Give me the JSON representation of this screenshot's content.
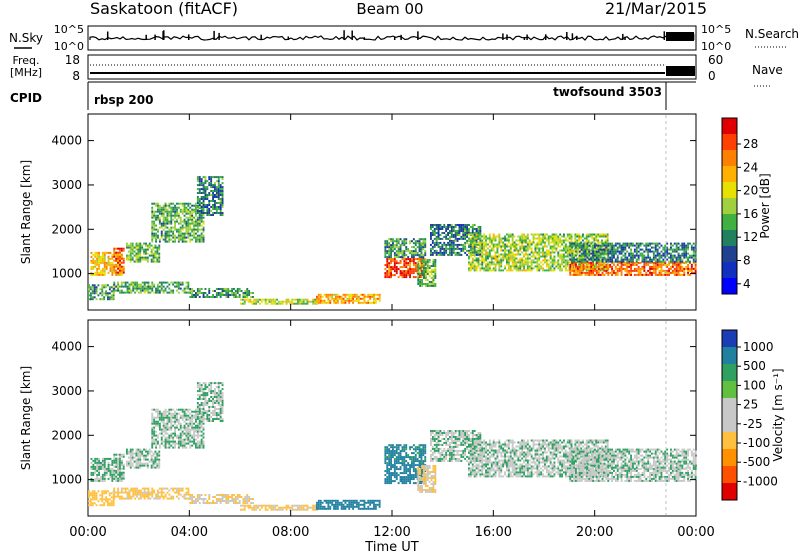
{
  "header": {
    "station": "Saskatoon (fitACF)",
    "beam": "Beam 00",
    "date": "21/Mar/2015"
  },
  "noise_panel": {
    "left_label": "N.Sky",
    "right_label": "N.Search",
    "left_ticks": [
      "10^5",
      "10^0"
    ],
    "right_ticks": [
      "10^5",
      "10^0"
    ]
  },
  "freq_panel": {
    "left_label_line1": "Freq.",
    "left_label_line2": "[MHz]",
    "left_ticks": [
      "18",
      "8"
    ],
    "right_label": "Nave",
    "right_ticks": [
      "60",
      "0"
    ]
  },
  "cpid_panel": {
    "label": "CPID",
    "segments": [
      {
        "name": "rbsp 200",
        "start_hour": 0,
        "end_hour": 22.9
      },
      {
        "name": "twofsound 3503",
        "start_hour": 22.9,
        "end_hour": 24
      }
    ]
  },
  "power_colorbar": {
    "label": "Power [dB]",
    "ticks": [
      "28",
      "24",
      "20",
      "16",
      "12",
      "8",
      "4"
    ],
    "colors": [
      "#e00000",
      "#ff4000",
      "#ff8000",
      "#ffb000",
      "#e8e000",
      "#a0d040",
      "#40b040",
      "#208060",
      "#204090",
      "#1030c0",
      "#0000ff"
    ]
  },
  "velocity_colorbar": {
    "label": "Velocity [m s⁻¹]",
    "ticks": [
      "1000",
      "500",
      "100",
      "25",
      "-25",
      "-100",
      "-500",
      "-1000"
    ],
    "colors": [
      "#1a3cb4",
      "#2080a0",
      "#30a060",
      "#60c040",
      "#c8c8c8",
      "#c8c8c8",
      "#ffc040",
      "#ff9000",
      "#ff5000",
      "#e00000"
    ]
  },
  "axes": {
    "ylabel": "Slant Range [km]",
    "xlabel": "Time UT",
    "yticks": [
      "4000",
      "3000",
      "2000",
      "1000"
    ],
    "xticks": [
      "00:00",
      "04:00",
      "08:00",
      "12:00",
      "16:00",
      "20:00",
      "00:00"
    ]
  },
  "chart_data": {
    "type": "heatmap",
    "title": "Saskatoon (fitACF) Beam 00 21/Mar/2015",
    "xlabel": "Time UT",
    "ylabel": "Slant Range [km]",
    "xlim_hours": [
      0,
      24
    ],
    "ylim_km": [
      180,
      4600
    ],
    "panels": [
      "Power [dB]",
      "Velocity [m s⁻¹]"
    ],
    "power_scale_db": [
      0,
      32
    ],
    "velocity_scale_ms": [
      -1000,
      1000
    ],
    "scatter_regions": [
      {
        "t0": 0.1,
        "t1": 1.3,
        "r0": 950,
        "r1": 1450,
        "power": 21,
        "velocity": 30
      },
      {
        "t0": 1.0,
        "t1": 1.4,
        "r0": 1000,
        "r1": 1550,
        "power": 26,
        "velocity": 20
      },
      {
        "t0": 0.0,
        "t1": 1.0,
        "r0": 400,
        "r1": 750,
        "power": 12,
        "velocity": -200
      },
      {
        "t0": 1.5,
        "t1": 2.8,
        "r0": 1250,
        "r1": 1700,
        "power": 14,
        "velocity": 10
      },
      {
        "t0": 2.5,
        "t1": 4.6,
        "r0": 1700,
        "r1": 2600,
        "power": 13,
        "velocity": 15
      },
      {
        "t0": 4.3,
        "t1": 5.3,
        "r0": 2300,
        "r1": 3200,
        "power": 10,
        "velocity": 20
      },
      {
        "t0": 1.0,
        "t1": 4.0,
        "r0": 550,
        "r1": 800,
        "power": 13,
        "velocity": -150
      },
      {
        "t0": 4.0,
        "t1": 6.5,
        "r0": 450,
        "r1": 650,
        "power": 12,
        "velocity": -100
      },
      {
        "t0": 6.0,
        "t1": 9.0,
        "r0": 300,
        "r1": 420,
        "power": 17,
        "velocity": -120
      },
      {
        "t0": 9.0,
        "t1": 11.5,
        "r0": 320,
        "r1": 540,
        "power": 22,
        "velocity": 200
      },
      {
        "t0": 11.7,
        "t1": 13.3,
        "r0": 900,
        "r1": 1350,
        "power": 28,
        "velocity": 300
      },
      {
        "t0": 11.7,
        "t1": 13.3,
        "r0": 1350,
        "r1": 1800,
        "power": 12,
        "velocity": 150
      },
      {
        "t0": 13.0,
        "t1": 13.7,
        "r0": 700,
        "r1": 1300,
        "power": 14,
        "velocity": -100
      },
      {
        "t0": 13.5,
        "t1": 15.5,
        "r0": 1400,
        "r1": 2100,
        "power": 10,
        "velocity": 5
      },
      {
        "t0": 15.0,
        "t1": 20.5,
        "r0": 1050,
        "r1": 1900,
        "power": 16,
        "velocity": 0
      },
      {
        "t0": 19.0,
        "t1": 24.0,
        "r0": 950,
        "r1": 1250,
        "power": 26,
        "velocity": -10
      },
      {
        "t0": 19.0,
        "t1": 24.0,
        "r0": 1250,
        "r1": 1700,
        "power": 10,
        "velocity": 0
      }
    ]
  }
}
